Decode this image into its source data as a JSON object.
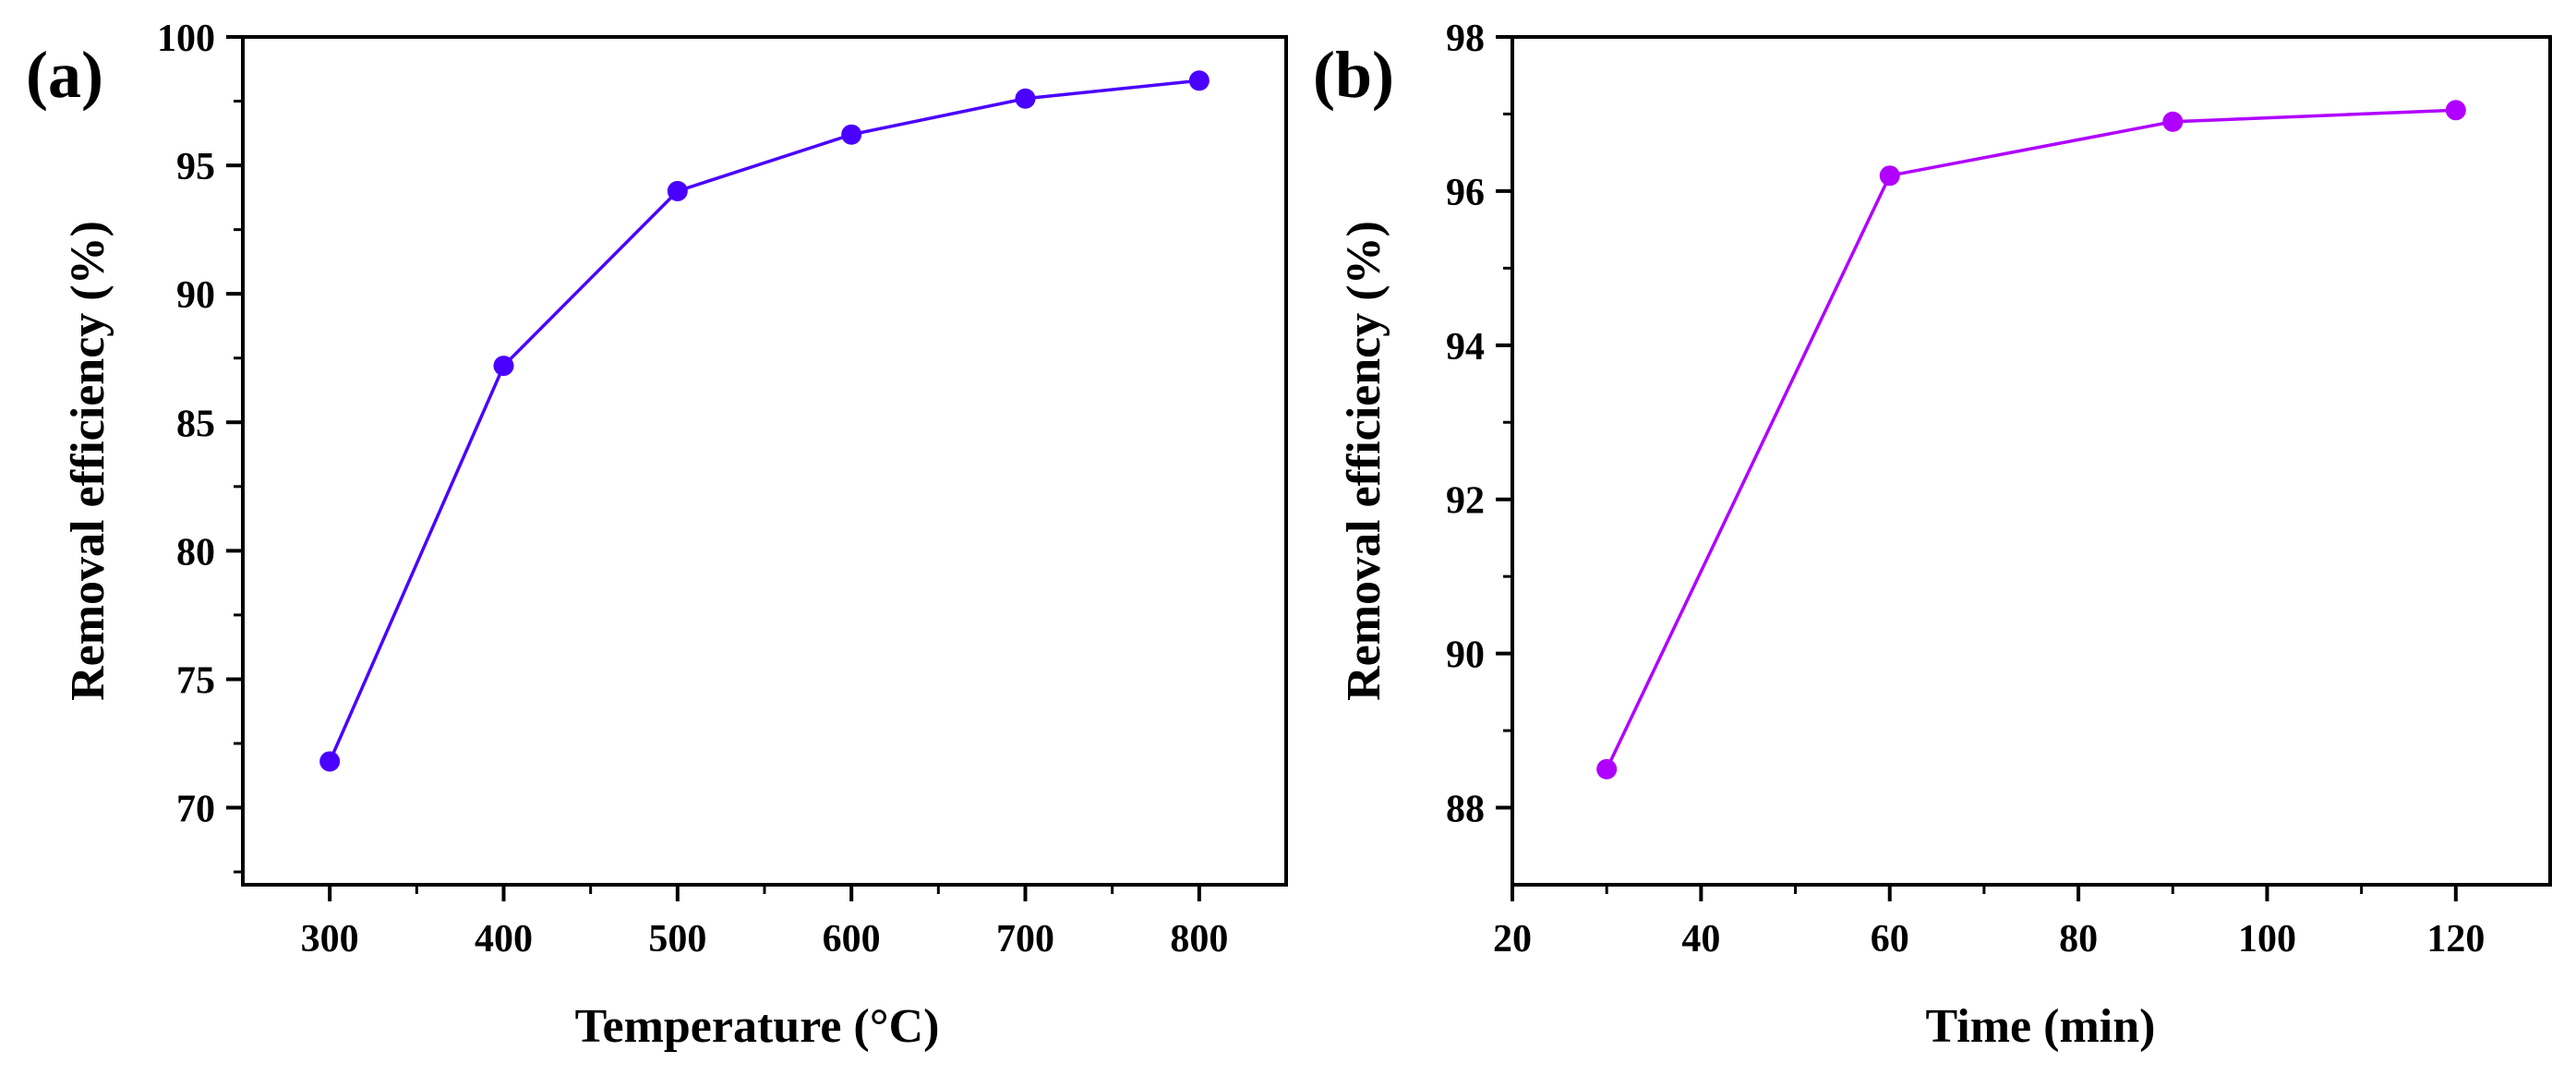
{
  "chart_data": [
    {
      "type": "line",
      "panel_label": "(a)",
      "xlabel": "Temperature (°C)",
      "ylabel": "Removal efficiency (%)",
      "xlim": [
        250,
        850
      ],
      "ylim": [
        67,
        100
      ],
      "xticks": [
        300,
        400,
        500,
        600,
        700,
        800
      ],
      "yticks": [
        70,
        75,
        80,
        85,
        90,
        95,
        100
      ],
      "series": [
        {
          "name": "Removal efficiency",
          "color": "#4a00ff",
          "x": [
            300,
            400,
            500,
            600,
            700,
            800
          ],
          "y": [
            71.8,
            87.2,
            94.0,
            96.2,
            97.6,
            98.3
          ]
        }
      ]
    },
    {
      "type": "line",
      "panel_label": "(b)",
      "xlabel": "Time (min)",
      "ylabel": "Removal efficiency (%)",
      "xlim": [
        20,
        130
      ],
      "ylim": [
        87,
        98
      ],
      "xticks": [
        20,
        40,
        60,
        80,
        100,
        120
      ],
      "yticks": [
        88,
        90,
        92,
        94,
        96,
        98
      ],
      "series": [
        {
          "name": "Removal efficiency",
          "color": "#b000ff",
          "x": [
            30,
            60,
            90,
            120
          ],
          "y": [
            88.5,
            96.2,
            96.9,
            97.05
          ]
        }
      ]
    }
  ]
}
